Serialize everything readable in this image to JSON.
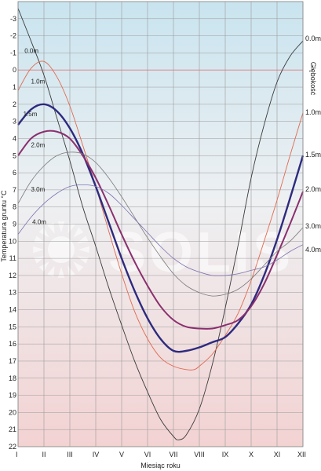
{
  "chart_data": {
    "type": "line",
    "xlabel": "Miesiąc roku",
    "ylabel": "Temperatura gruntu °C",
    "right_axis_title": "Głębokość",
    "watermark": "SOLIS",
    "x_categories": [
      "I",
      "II",
      "III",
      "IV",
      "V",
      "VI",
      "VII",
      "VIII",
      "IX",
      "X",
      "XI",
      "XII"
    ],
    "y_ticks": [
      "-3",
      "-2",
      "-1",
      "0",
      "1",
      "2",
      "3",
      "4",
      "5",
      "6",
      "7",
      "8",
      "9",
      "10",
      "11",
      "12",
      "13",
      "14",
      "15",
      "16",
      "17",
      "18",
      "19",
      "20",
      "21",
      "22"
    ],
    "ylim": [
      -4,
      22
    ],
    "y_inverted": true,
    "grid": true,
    "background_gradient": [
      "#c9e4ef",
      "#eef0f2",
      "#f3d2d2"
    ],
    "colors": {
      "grid": "#9a9a9a",
      "zero_line": "#e07878",
      "frame": "#888888"
    },
    "series": [
      {
        "name": "0.0m",
        "color": "#3a3a3a",
        "width": 0.9,
        "x": [
          1,
          1.5,
          2,
          2.5,
          3,
          3.5,
          4,
          4.5,
          5,
          5.5,
          6,
          6.5,
          7,
          7.2,
          7.5,
          8,
          8.5,
          9,
          9.5,
          10,
          10.5,
          11,
          11.5,
          12
        ],
        "values": [
          -3.6,
          -1.7,
          0.3,
          2.8,
          5.3,
          8.0,
          10.3,
          12.7,
          14.9,
          17.0,
          18.8,
          20.4,
          21.4,
          21.6,
          21.3,
          19.8,
          17.2,
          13.9,
          10.2,
          6.3,
          3.2,
          0.7,
          -0.8,
          -1.7
        ]
      },
      {
        "name": "1.0m",
        "color": "#e06a50",
        "width": 0.9,
        "x": [
          1,
          1.5,
          2,
          2.5,
          3,
          3.5,
          4,
          4.5,
          5,
          5.5,
          6,
          6.5,
          7,
          7.5,
          7.8,
          8,
          8.5,
          9,
          9.5,
          10,
          10.5,
          11,
          11.5,
          12
        ],
        "values": [
          1.2,
          -0.1,
          -0.5,
          0.4,
          2.1,
          4.4,
          6.8,
          9.4,
          11.9,
          14.1,
          15.7,
          16.8,
          17.3,
          17.5,
          17.5,
          17.3,
          16.6,
          15.5,
          14.2,
          12.3,
          10.0,
          7.6,
          5.0,
          2.5
        ]
      },
      {
        "name": "1.5m",
        "color": "#2e2a7e",
        "width": 2.4,
        "x": [
          1,
          1.5,
          2,
          2.5,
          3,
          3.5,
          4,
          4.5,
          5,
          5.5,
          6,
          6.5,
          7,
          7.5,
          8,
          8.5,
          9,
          9.5,
          10,
          10.5,
          11,
          11.5,
          12
        ],
        "values": [
          3.2,
          2.3,
          2.0,
          2.4,
          3.4,
          4.9,
          6.8,
          8.9,
          11.0,
          12.9,
          14.5,
          15.7,
          16.4,
          16.4,
          16.2,
          15.9,
          15.6,
          14.8,
          13.7,
          12.0,
          9.9,
          7.5,
          5.0
        ]
      },
      {
        "name": "2.0m",
        "color": "#8a2f6e",
        "width": 2.0,
        "x": [
          1,
          1.5,
          2,
          2.5,
          3,
          3.5,
          4,
          4.5,
          5,
          5.5,
          6,
          6.5,
          7,
          7.5,
          8,
          8.5,
          9,
          9.5,
          10,
          10.5,
          11,
          11.5,
          12
        ],
        "values": [
          5.0,
          4.0,
          3.6,
          3.6,
          4.0,
          5.0,
          6.3,
          7.9,
          9.6,
          11.2,
          12.6,
          13.8,
          14.6,
          15.0,
          15.1,
          15.1,
          14.9,
          14.6,
          13.8,
          12.5,
          10.8,
          9.0,
          7.1
        ]
      },
      {
        "name": "3.0m",
        "color": "#7a7a7a",
        "width": 0.8,
        "x": [
          1,
          1.5,
          2,
          2.5,
          3,
          3.5,
          4,
          4.5,
          5,
          5.5,
          6,
          6.5,
          7,
          7.5,
          8,
          8.5,
          9,
          9.5,
          10,
          10.5,
          11,
          11.5,
          12
        ],
        "values": [
          7.8,
          6.5,
          5.6,
          5.0,
          4.8,
          4.9,
          5.4,
          6.3,
          7.4,
          8.6,
          9.8,
          10.9,
          11.9,
          12.6,
          13.0,
          13.2,
          13.1,
          12.8,
          12.2,
          11.4,
          10.6,
          10.0,
          9.2
        ]
      },
      {
        "name": "4.0m",
        "color": "#7d73b0",
        "width": 0.8,
        "x": [
          1,
          1.5,
          2,
          2.5,
          3,
          3.5,
          4,
          4.5,
          5,
          5.5,
          6,
          6.5,
          7,
          7.5,
          8,
          8.5,
          9,
          9.5,
          10,
          10.5,
          11,
          11.5,
          12
        ],
        "values": [
          9.6,
          8.6,
          7.8,
          7.2,
          6.8,
          6.7,
          6.8,
          7.2,
          7.9,
          8.7,
          9.5,
          10.3,
          11.0,
          11.5,
          11.8,
          12.0,
          12.0,
          11.9,
          11.7,
          11.5,
          11.1,
          10.6,
          10.2
        ]
      }
    ],
    "right_labels": [
      "0.0m",
      "1.0m",
      "1.5m",
      "2.0m",
      "3.0m",
      "4.0m"
    ]
  }
}
